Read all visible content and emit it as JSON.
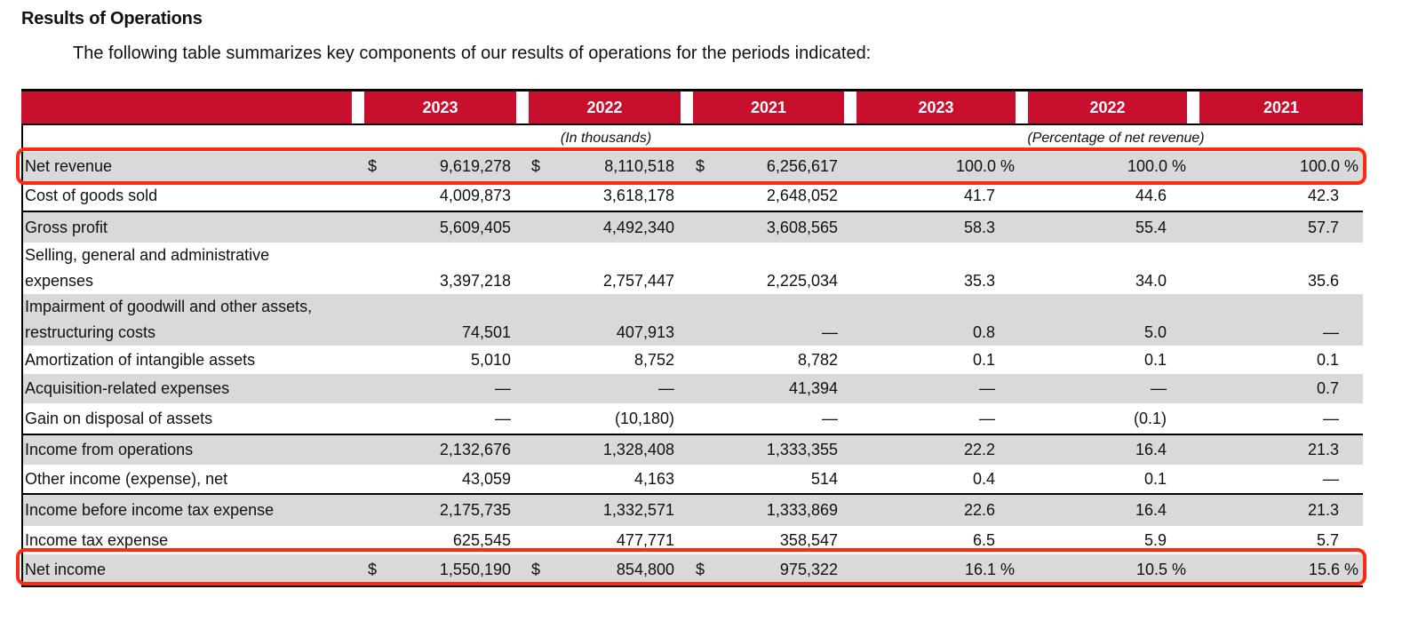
{
  "heading": "Results of Operations",
  "intro": "The following table summarizes key components of our results of operations for the periods indicated:",
  "colors": {
    "header_bg": "#c8102e",
    "header_text": "#ffffff",
    "row_shade": "#d9d9d9",
    "highlight": "#ff2a10"
  },
  "table": {
    "headers": [
      "2023",
      "2022",
      "2021",
      "2023",
      "2022",
      "2021"
    ],
    "units_left": "(In thousands)",
    "units_right": "(Percentage of net revenue)",
    "rows": [
      {
        "label": "Net revenue",
        "dollar": "$",
        "v": [
          "9,619,278",
          "8,110,518",
          "6,256,617"
        ],
        "p": [
          "100.0 %",
          "100.0 %",
          "100.0 %"
        ]
      },
      {
        "label": "Cost of goods sold",
        "v": [
          "4,009,873",
          "3,618,178",
          "2,648,052"
        ],
        "p": [
          "41.7",
          "44.6",
          "42.3"
        ]
      },
      {
        "label": "Gross profit",
        "v": [
          "5,609,405",
          "4,492,340",
          "3,608,565"
        ],
        "p": [
          "58.3",
          "55.4",
          "57.7"
        ]
      },
      {
        "label": "Selling, general and administrative",
        "label2": "expenses",
        "v": [
          "3,397,218",
          "2,757,447",
          "2,225,034"
        ],
        "p": [
          "35.3",
          "34.0",
          "35.6"
        ]
      },
      {
        "label": "Impairment of goodwill and other assets,",
        "label2": "restructuring costs",
        "v": [
          "74,501",
          "407,913",
          "—"
        ],
        "p": [
          "0.8",
          "5.0",
          "—"
        ]
      },
      {
        "label": "Amortization of intangible assets",
        "v": [
          "5,010",
          "8,752",
          "8,782"
        ],
        "p": [
          "0.1",
          "0.1",
          "0.1"
        ]
      },
      {
        "label": "Acquisition-related expenses",
        "v": [
          "—",
          "—",
          "41,394"
        ],
        "p": [
          "—",
          "—",
          "0.7"
        ]
      },
      {
        "label": "Gain on disposal of assets",
        "v": [
          "—",
          "(10,180)",
          "—"
        ],
        "p": [
          "—",
          "(0.1)",
          "—"
        ]
      },
      {
        "label": "Income from operations",
        "v": [
          "2,132,676",
          "1,328,408",
          "1,333,355"
        ],
        "p": [
          "22.2",
          "16.4",
          "21.3"
        ]
      },
      {
        "label": "Other income (expense), net",
        "v": [
          "43,059",
          "4,163",
          "514"
        ],
        "p": [
          "0.4",
          "0.1",
          "—"
        ]
      },
      {
        "label": "Income before income tax expense",
        "v": [
          "2,175,735",
          "1,332,571",
          "1,333,869"
        ],
        "p": [
          "22.6",
          "16.4",
          "21.3"
        ]
      },
      {
        "label": "Income tax expense",
        "v": [
          "625,545",
          "477,771",
          "358,547"
        ],
        "p": [
          "6.5",
          "5.9",
          "5.7"
        ]
      },
      {
        "label": "Net income",
        "dollar": "$",
        "v": [
          "1,550,190",
          "854,800",
          "975,322"
        ],
        "p": [
          "16.1 %",
          "10.5 %",
          "15.6 %"
        ]
      }
    ]
  }
}
